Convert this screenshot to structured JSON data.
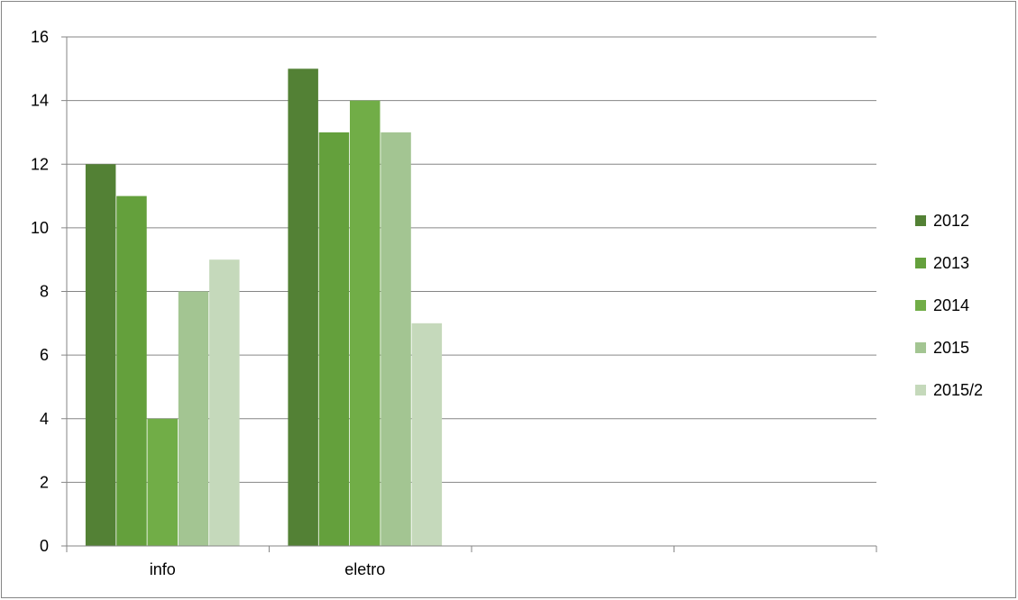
{
  "chart_data": {
    "type": "bar",
    "title": "",
    "xlabel": "",
    "ylabel": "",
    "categories": [
      "info",
      "eletro"
    ],
    "ylim": [
      0,
      16
    ],
    "yticks": [
      0,
      2,
      4,
      6,
      8,
      10,
      12,
      14,
      16
    ],
    "grid": true,
    "legend_position": "right",
    "empty_slots": 2,
    "series": [
      {
        "name": "2012",
        "values": [
          12,
          15
        ],
        "color": "#538135"
      },
      {
        "name": "2013",
        "values": [
          11,
          13
        ],
        "color": "#64A03C"
      },
      {
        "name": "2014",
        "values": [
          4,
          14
        ],
        "color": "#71AD47"
      },
      {
        "name": "2015",
        "values": [
          8,
          13
        ],
        "color": "#A3C592"
      },
      {
        "name": "2015/2",
        "values": [
          9,
          7
        ],
        "color": "#C5D9BB"
      }
    ]
  }
}
